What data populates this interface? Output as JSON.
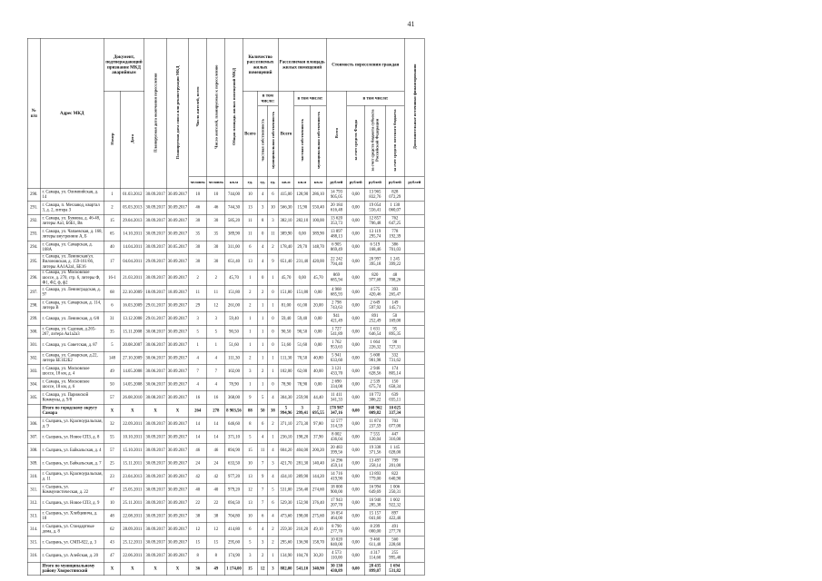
{
  "page_number": "41",
  "table": {
    "headers": {
      "num": "№\nп/п",
      "address": "Адрес МКД",
      "doc_group": "Документ, подтверждающий признание МКД аварийным",
      "doc_number": "Номер",
      "doc_date": "Дата",
      "plan_end": "Планируемая дата окончания переселения",
      "plan_demo": "Планируемая дата сноса или реконструкции МКД",
      "residents_total": "Число жителей, всего",
      "residents_plan": "Число жителей, планируемых к переселению",
      "area_mkd": "Общая площадь жилых помещений МКД",
      "count_group": "Количество расселяемых жилых помещений",
      "area_group": "Расселяемая площадь жилых помещений",
      "cost_group": "Стоимость переселения граждан",
      "extra_group": "Дополнительные источники финансирования",
      "vsego": "Всего",
      "v_tom_chisle": "в том числе:",
      "private": "частная собственность",
      "municipal": "муниципальная собственность",
      "fund": "за счет средств Фонда",
      "subject": "за счет средств бюджета субъекта Российской Федерации",
      "local": "за счет средств местного бюджета",
      "units": {
        "people": "человек",
        "sqm": "кв.м",
        "ed": "ед.",
        "rub": "рублей"
      }
    },
    "rows": [
      {
        "bold": false,
        "cells": [
          "290.",
          "г. Самара, ул. Олимпийская, д. 14",
          "1",
          "01.03.2012",
          "30.09.2017",
          "30.09.2017",
          "10",
          "10",
          "744,00",
          "10",
          "4",
          "6",
          "415,00",
          "128,90",
          "286,10",
          "14 793 905,05",
          "0,00",
          "13 965 832,76",
          "828 072,29",
          ""
        ]
      },
      {
        "bold": false,
        "cells": [
          "291.",
          "г. Самара, п. Мехзавод, квартал 3, д. 2, литера З",
          "2",
          "05.03.2013",
          "30.09.2017",
          "30.09.2017",
          "46",
          "46",
          "744,30",
          "13",
          "3",
          "10",
          "566,30",
          "15,90",
          "550,40",
          "20 184 616,48",
          "0,00",
          "19 054 556,41",
          "1 130 060,07",
          ""
        ]
      },
      {
        "bold": false,
        "cells": [
          "292.",
          "г. Самара, ул. Буянова, д. 46-48, литеры Аа1, Б6Б1, Вв",
          "15",
          "29.04.2013",
          "30.09.2017",
          "30.09.2017",
          "30",
          "30",
          "585,20",
          "11",
          "8",
          "3",
          "382,10",
          "282,10",
          "100,00",
          "13 620 353,73",
          "0,00",
          "12 857 706,48",
          "762 647,25",
          ""
        ]
      },
      {
        "bold": false,
        "cells": [
          "293.",
          "г. Самара, ул. Чапаевская, д. 168, литеры внутренние А, Б",
          "65",
          "14.10.2011",
          "30.09.2017",
          "30.09.2017",
          "35",
          "35",
          "389,90",
          "11",
          "0",
          "11",
          "389,90",
          "0,00",
          "389,90",
          "13 897 488,13",
          "0,00",
          "13 119 295,74",
          "778 192,39",
          ""
        ]
      },
      {
        "bold": false,
        "cells": [
          "294.",
          "г. Самара, ул. Самарская, д. 168А",
          "40",
          "14.04.2011",
          "30.09.2017",
          "30.05.2017",
          "30",
          "30",
          "311,00",
          "6",
          "4",
          "2",
          "178,40",
          "29,70",
          "148,70",
          "6 905 869,49",
          "0,00",
          "6 519 168,46",
          "386 701,03",
          ""
        ]
      },
      {
        "bold": false,
        "cells": [
          "295.",
          "г. Самара, ул. Ленинская/ул. Вилоновская, д. 159-161/66, литеры АА1А2а1, БЕ16",
          "17",
          "04.04.2011",
          "29.09.2017",
          "30.09.2017",
          "30",
          "30",
          "651,40",
          "13",
          "4",
          "9",
          "651,40",
          "231,40",
          "420,00",
          "22 242 794,40",
          "0,00",
          "20 997 395,18",
          "1 245 399,22",
          ""
        ]
      },
      {
        "bold": false,
        "cells": [
          "296.",
          "г. Самара, ул. Московское шоссе, д. 270, стр. 6,   литеры Ф, Ф1, Ф2, ф, ф2",
          "16-1",
          "21.03.2011",
          "30.09.2017",
          "30.09.2017",
          "2",
          "2",
          "45,70",
          "1",
          "0",
          "1",
          "45,70",
          "0,00",
          "45,70",
          "869 685,94",
          "0,00",
          "820 977,68",
          "48 708,26",
          ""
        ]
      },
      {
        "bold": false,
        "cells": [
          "297.",
          "г. Самара, ул. Ленинградская, д. 97",
          "68",
          "22.10.2009",
          "18.09.2017",
          "18.09.2017",
          "11",
          "11",
          "151,80",
          "2",
          "2",
          "0",
          "151,80",
          "151,80",
          "0,00",
          "4 968 685,93",
          "0,00",
          "4 575 420,46",
          "393 265,47",
          ""
        ]
      },
      {
        "bold": false,
        "cells": [
          "298.",
          "г. Самара, ул. Самарская, д. 114, литера В",
          "6",
          "16.03.2009",
          "29.01.2017",
          "30.09.2017",
          "29",
          "12",
          "261,00",
          "2",
          "1",
          "1",
          "81,00",
          "61,00",
          "20,00",
          "2 798 743,63",
          "0,00",
          "2 649 597,92",
          "149 145,71",
          ""
        ]
      },
      {
        "bold": false,
        "cells": [
          "299.",
          "г. Самара, ул. Ленинская, д. 6/8",
          "31",
          "13.12.2008",
          "29.01.2017",
          "30.09.2017",
          "3",
          "3",
          "59,40",
          "1",
          "1",
          "0",
          "59,40",
          "59,40",
          "0,00",
          "941 421,49",
          "0,00",
          "891 252,49",
          "50 169,00",
          ""
        ]
      },
      {
        "bold": false,
        "cells": [
          "300.",
          "г. Самара, ул. Садовая, д.265-267, литера Аа1а2а3",
          "35",
          "15.11.2008",
          "30.08.2017",
          "30.09.2017",
          "5",
          "5",
          "90,50",
          "1",
          "1",
          "0",
          "90,50",
          "90,50",
          "0,00",
          "1 727 541,89",
          "0,00",
          "1 631 646,54",
          "95 895,35",
          ""
        ]
      },
      {
        "bold": false,
        "cells": [
          "301.",
          "г. Самара, ул. Советская, д. 87",
          "5",
          "20.08.2007",
          "30.06.2017",
          "30.09.2017",
          "1",
          "1",
          "51,60",
          "1",
          "1",
          "0",
          "51,60",
          "51,60",
          "0,00",
          "1 762 953,63",
          "0,00",
          "1 664 226,32",
          "98 727,31",
          ""
        ]
      },
      {
        "bold": false,
        "cells": [
          "302.",
          "г. Самара, ул. Самарская, д.22, литера БЕ1Е2Б2",
          "148",
          "27.10.2009",
          "30.06.2017",
          "30.09.2017",
          "4",
          "4",
          "111,30",
          "2",
          "1",
          "1",
          "111,30",
          "70,50",
          "40,80",
          "5 941 633,60",
          "0,00",
          "5 608 901,98",
          "332 731,62",
          ""
        ]
      },
      {
        "bold": false,
        "cells": [
          "303.",
          "г. Самара, ул. Московское шоссе, 18 км, д. 4",
          "49",
          "14.05.2008",
          "30.06.2017",
          "30.09.2017",
          "7",
          "7",
          "102,00",
          "3",
          "2",
          "1",
          "102,00",
          "62,00",
          "40,00",
          "3 121 433,70",
          "0,00",
          "2 946 628,56",
          "174 805,14",
          ""
        ]
      },
      {
        "bold": false,
        "cells": [
          "304.",
          "г. Самара, ул. Московское шоссе, 18 км, д. 6",
          "50",
          "14.05.2008",
          "30.06.2017",
          "30.09.2017",
          "4",
          "4",
          "78,90",
          "1",
          "1",
          "0",
          "78,90",
          "78,90",
          "0,00",
          "2 690 334,08",
          "0,00",
          "2 539 675,74",
          "150 658,34",
          ""
        ]
      },
      {
        "bold": false,
        "cells": [
          "305.",
          "г. Самара, ул. Парижской Коммуны, д. 9/8",
          "57",
          "26.08.2010",
          "30.08.2017",
          "30.09.2017",
          "16",
          "16",
          "368,00",
          "9",
          "5",
          "4",
          "304,30",
          "259,90",
          "44,40",
          "11 411 341,33",
          "0,00",
          "10 772 306,22",
          "639 035,11",
          ""
        ]
      },
      {
        "bold": true,
        "cells": [
          "",
          "Итого по городскому округу Самара",
          "Х",
          "Х",
          "Х",
          "Х",
          "264",
          "278",
          "8 903,56",
          "88",
          "50",
          "38",
          "5 994,96",
          "3 299,41",
          "2 695,55",
          "178 987 347,16",
          "0,00",
          "168 962 009,82",
          "10 025 337,34",
          ""
        ]
      },
      {
        "bold": false,
        "cells": [
          "306.",
          "г. Сызрань, ул. Красноуральская, д. 9",
          "32",
          "22.09.2011",
          "30.09.2017",
          "30.09.2017",
          "14",
          "14",
          "646,60",
          "8",
          "6",
          "2",
          "371,10",
          "273,30",
          "97,80",
          "12 577 314,59",
          "0,00",
          "11 874 237,59",
          "703 077,00",
          ""
        ]
      },
      {
        "bold": false,
        "cells": [
          "307.",
          "г. Сызрань, ул. Новое СПЗ, д. 8",
          "55",
          "10.10.2011",
          "30.09.2017",
          "30.09.2017",
          "14",
          "14",
          "371,10",
          "5",
          "4",
          "1",
          "236,10",
          "198,20",
          "37,90",
          "8 002 436,04",
          "0,00",
          "7 555 120,04",
          "447 316,00",
          ""
        ]
      },
      {
        "bold": false,
        "cells": [
          "308.",
          "г. Сызрань, ул. Байкальская, д. 4",
          "57",
          "15.10.2011",
          "30.09.2017",
          "30.09.2017",
          "46",
          "46",
          "894,90",
          "15",
          "11",
          "4",
          "604,20",
          "404,00",
          "200,20",
          "20 483 399,56",
          "0,00",
          "19 338 371,56",
          "1 145 028,00",
          ""
        ]
      },
      {
        "bold": false,
        "cells": [
          "309.",
          "г. Сызрань, ул. Байкальская, д. 7",
          "25",
          "15.11.2011",
          "30.09.2017",
          "30.09.2017",
          "24",
          "24",
          "633,50",
          "10",
          "7",
          "3",
          "421,70",
          "281,30",
          "140,40",
          "14 296 459,14",
          "0,00",
          "13 497 258,14",
          "799 201,00",
          ""
        ]
      },
      {
        "bold": false,
        "cells": [
          "310.",
          "г. Сызрань, ул. Красноуральская, д. 11",
          "23",
          "23.04.2013",
          "30.09.2017",
          "30.09.2017",
          "42",
          "42",
          "977,20",
          "13",
          "9",
          "4",
          "434,10",
          "289,90",
          "144,20",
          "14 716 419,90",
          "0,00",
          "13 893 779,00",
          "822 640,90",
          ""
        ]
      },
      {
        "bold": false,
        "cells": [
          "311.",
          "г. Сызрань, ул. Коммунистическая, д. 22",
          "47",
          "25.05.2011",
          "30.09.2017",
          "30.09.2017",
          "40",
          "40",
          "979,20",
          "12",
          "7",
          "5",
          "531,00",
          "256,40",
          "274,60",
          "18 000 900,00",
          "0,00",
          "16 994 649,69",
          "1 006 250,31",
          ""
        ]
      },
      {
        "bold": false,
        "cells": [
          "312.",
          "г. Сызрань, ул. Новое СПЗ, д. 9",
          "10",
          "25.11.2011",
          "30.09.2017",
          "30.09.2017",
          "22",
          "22",
          "694,50",
          "13",
          "7",
          "6",
          "529,30",
          "152,90",
          "376,40",
          "17 943 207,70",
          "0,00",
          "16 940 285,38",
          "1 002 922,32",
          ""
        ]
      },
      {
        "bold": false,
        "cells": [
          "313.",
          "г. Сызрань, ул. Хлебцевича, д. 18",
          "48",
          "22.08.2011",
          "30.09.2017",
          "30.09.2017",
          "38",
          "38",
          "704,80",
          "10",
          "6",
          "4",
          "473,60",
          "198,00",
          "275,60",
          "16 054 464,00",
          "0,00",
          "15 157 041,60",
          "897 422,40",
          ""
        ]
      },
      {
        "bold": false,
        "cells": [
          "314.",
          "г. Сызрань, ул. Стандартные дома, д. 8",
          "62",
          "28.09.2011",
          "30.09.2017",
          "30.09.2017",
          "12",
          "12",
          "414,80",
          "6",
          "4",
          "2",
          "259,30",
          "210,20",
          "49,10",
          "8 790 277,70",
          "0,00",
          "8 299 000,00",
          "491 277,70",
          ""
        ]
      },
      {
        "bold": false,
        "cells": [
          "315.",
          "г. Сызрань, ул. СМП-822, д. 3",
          "43",
          "25.12.2011",
          "30.09.2017",
          "30.09.2017",
          "15",
          "15",
          "295,60",
          "5",
          "3",
          "2",
          "295,60",
          "136,90",
          "158,70",
          "10 020 840,00",
          "0,00",
          "9 460 611,40",
          "560 228,60",
          ""
        ]
      },
      {
        "bold": false,
        "cells": [
          "316.",
          "г. Сызрань, ул. Алейская, д. 20",
          "47",
          "22.06.2011",
          "30.09.2017",
          "30.09.2017",
          "8",
          "8",
          "174,90",
          "3",
          "2",
          "1",
          "134,90",
          "104,70",
          "30,20",
          "4 573 110,00",
          "0,00",
          "4 317 114,60",
          "255 995,40",
          ""
        ]
      },
      {
        "bold": true,
        "cells": [
          "",
          "Итого по муниципальному району Хворостянский",
          "Х",
          "Х",
          "Х",
          "Х",
          "36",
          "49",
          "1 174,00",
          "15",
          "12",
          "3",
          "882,00",
          "541,10",
          "340,90",
          "30 130 430,89",
          "0,00",
          "28 435 899,07",
          "1 694 531,82",
          ""
        ]
      }
    ]
  }
}
